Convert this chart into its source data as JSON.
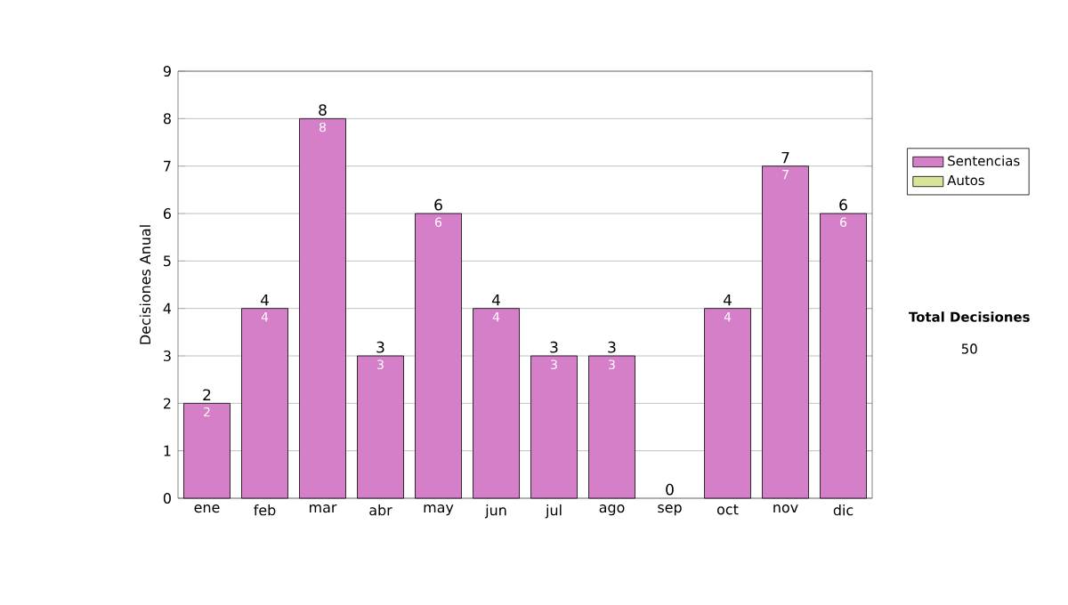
{
  "chart_data": {
    "type": "bar",
    "stacked": true,
    "ylabel": "Decisiones Anual",
    "categories": [
      "ene",
      "feb",
      "mar",
      "abr",
      "may",
      "jun",
      "jul",
      "ago",
      "sep",
      "oct",
      "nov",
      "dic"
    ],
    "series": [
      {
        "name": "Sentencias",
        "color": "#d67fc9",
        "values": [
          2,
          4,
          8,
          3,
          6,
          4,
          3,
          3,
          0,
          4,
          7,
          6
        ],
        "value_labels": [
          "2",
          "4",
          "8",
          "3",
          "6",
          "4",
          "3",
          "3",
          null,
          "4",
          "7",
          "6"
        ]
      },
      {
        "name": "Autos",
        "color": "#d8e49a",
        "values": [
          0,
          0,
          0,
          0,
          0,
          0,
          0,
          0,
          0,
          0,
          0,
          0
        ]
      }
    ],
    "totals": [
      "2",
      "4",
      "8",
      "3",
      "6",
      "4",
      "3",
      "3",
      "0",
      "4",
      "7",
      "6"
    ],
    "ylim": [
      0,
      9
    ],
    "yticks": [
      0,
      1,
      2,
      3,
      4,
      5,
      6,
      7,
      8,
      9
    ],
    "grid": "y",
    "legend": "right",
    "annotations": [
      "Total Decisiones",
      "50"
    ]
  }
}
